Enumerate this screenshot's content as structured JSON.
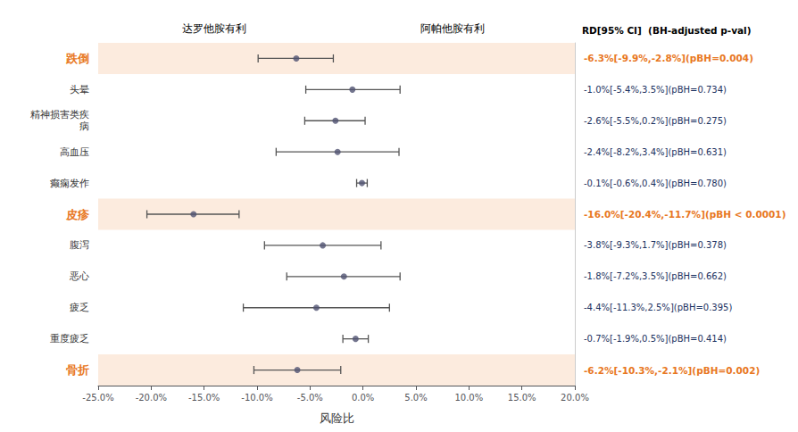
{
  "chart_data": {
    "type": "forest",
    "orientation": "horizontal",
    "xlabel": "风险比",
    "annotations": {
      "favours": [
        "达罗他胺有利",
        "阿帕他胺有利"
      ],
      "column_header": "RD[95% CI]  (BH-adjusted p-val)"
    },
    "categories": [
      "跌倒",
      "头晕",
      "精神损害类疾\n病",
      "高血压",
      "癫痫发作",
      "皮疹",
      "腹泻",
      "恶心",
      "疲乏",
      "重度疲乏",
      "骨折"
    ],
    "values": [
      -6.3,
      -1.0,
      -2.6,
      -2.4,
      -0.1,
      -16.0,
      -3.8,
      -1.8,
      -4.4,
      -0.7,
      -6.2
    ],
    "low": [
      -9.9,
      -5.4,
      -5.5,
      -8.2,
      -0.6,
      -20.4,
      -9.3,
      -7.2,
      -11.3,
      -1.9,
      -10.3
    ],
    "high": [
      -2.8,
      3.5,
      0.2,
      3.4,
      0.4,
      -11.7,
      1.7,
      3.5,
      2.5,
      0.5,
      -2.1
    ],
    "value_labels": [
      "-6.3%[-9.9%,-2.8%](pBH=0.004)",
      "-1.0%[-5.4%,3.5%](pBH=0.734)",
      "-2.6%[-5.5%,0.2%](pBH=0.275)",
      "-2.4%[-8.2%,3.4%](pBH=0.631)",
      "-0.1%[-0.6%,0.4%](pBH=0.780)",
      "-16.0%[-20.4%,-11.7%](pBH < 0.0001)",
      "-3.8%[-9.3%,1.7%](pBH=0.378)",
      "-1.8%[-7.2%,3.5%](pBH=0.662)",
      "-4.4%[-11.3%,2.5%](pBH=0.395)",
      "-0.7%[-1.9%,0.5%](pBH=0.414)",
      "-6.2%[-10.3%,-2.1%](pBH=0.002)"
    ],
    "highlight": [
      true,
      false,
      false,
      false,
      false,
      true,
      false,
      false,
      false,
      false,
      true
    ],
    "colors": [
      "#e87722",
      "#1a3060",
      "#1a3060",
      "#1a3060",
      "#1a3060",
      "#e87722",
      "#1a3060",
      "#1a3060",
      "#1a3060",
      "#1a3060",
      "#e87722"
    ],
    "xlim": [
      -25,
      20
    ],
    "xticks": [
      {
        "value": -25,
        "label": "-25.0%"
      },
      {
        "value": -20,
        "label": "-20.0%"
      },
      {
        "value": -15,
        "label": "-15.0%"
      },
      {
        "value": -10,
        "label": "-10.0%"
      },
      {
        "value": -5,
        "label": "-5.0%"
      },
      {
        "value": 0,
        "label": "0.0%"
      },
      {
        "value": 5,
        "label": "5.0%"
      },
      {
        "value": 10,
        "label": "10.0%"
      },
      {
        "value": 15,
        "label": "15.0%"
      },
      {
        "value": 20,
        "label": "20.0%"
      }
    ],
    "grid": false
  }
}
